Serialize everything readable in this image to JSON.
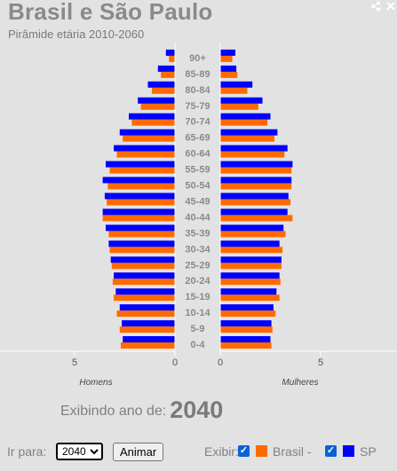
{
  "header": {
    "title": "Brasil e São Paulo",
    "subtitle": "Pirâmide etária 2010-2060"
  },
  "icons": [
    "share-icon",
    "close-icon"
  ],
  "colors": {
    "brasil": "#ff6a00",
    "sp": "#0000ff"
  },
  "chart_data": {
    "type": "bar",
    "orientation": "horizontal-pyramid",
    "categories": [
      "0-4",
      "5-9",
      "10-14",
      "15-19",
      "20-24",
      "25-29",
      "30-34",
      "35-39",
      "40-44",
      "45-49",
      "50-54",
      "55-59",
      "60-64",
      "65-69",
      "70-74",
      "75-79",
      "80-84",
      "85-89",
      "90+"
    ],
    "left_label": "Homens",
    "right_label": "Mulheres",
    "xlim": [
      0,
      7
    ],
    "left_ticks": [
      "5",
      "0"
    ],
    "right_ticks": [
      "0",
      "5"
    ],
    "legend": [
      "Brasil",
      "SP"
    ],
    "series": [
      {
        "name": "Brasil",
        "group": "Homens",
        "values": [
          2.7,
          2.75,
          2.9,
          3.05,
          3.1,
          3.15,
          3.25,
          3.3,
          3.6,
          3.4,
          3.35,
          3.25,
          2.9,
          2.6,
          2.15,
          1.7,
          1.15,
          0.7,
          0.3
        ]
      },
      {
        "name": "SP",
        "group": "Homens",
        "values": [
          2.6,
          2.65,
          2.75,
          2.95,
          3.05,
          3.2,
          3.3,
          3.45,
          3.6,
          3.5,
          3.6,
          3.45,
          3.05,
          2.75,
          2.3,
          1.85,
          1.35,
          0.85,
          0.45
        ]
      },
      {
        "name": "Brasil",
        "group": "Mulheres",
        "values": [
          2.55,
          2.6,
          2.75,
          2.95,
          3.0,
          3.05,
          3.1,
          3.25,
          3.6,
          3.5,
          3.55,
          3.55,
          3.2,
          2.7,
          2.35,
          1.9,
          1.35,
          0.85,
          0.6
        ]
      },
      {
        "name": "SP",
        "group": "Mulheres",
        "values": [
          2.5,
          2.55,
          2.65,
          2.8,
          2.95,
          3.05,
          2.95,
          3.15,
          3.35,
          3.4,
          3.55,
          3.6,
          3.35,
          2.85,
          2.5,
          2.1,
          1.6,
          0.8,
          0.75
        ]
      }
    ]
  },
  "status": {
    "label": "Exibindo ano de:",
    "year": "2040"
  },
  "controls": {
    "go_label": "Ir para:",
    "year_options": [
      "2040"
    ],
    "selected_year": "2040",
    "animate_label": "Animar",
    "show_label": "Exibir:",
    "brasil_label": "Brasil -",
    "sp_label": "SP"
  }
}
